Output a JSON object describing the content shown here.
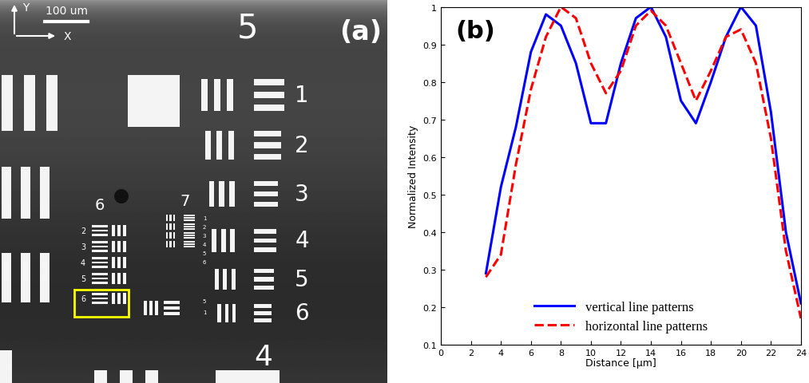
{
  "chart_data": {
    "type": "line",
    "label": "(b)",
    "x_label": "Distance [μm]",
    "y_label": "Normalized Intensity",
    "x": [
      3,
      4,
      5,
      6,
      7,
      8,
      9,
      10,
      11,
      12,
      13,
      14,
      15,
      16,
      17,
      18,
      19,
      20,
      21,
      22,
      23,
      24
    ],
    "series": [
      {
        "name": "vertical line patterns",
        "color": "#0000ff",
        "line_style": "solid",
        "values": [
          0.29,
          0.52,
          0.68,
          0.88,
          0.98,
          0.95,
          0.85,
          0.69,
          0.69,
          0.85,
          0.97,
          1.0,
          0.92,
          0.75,
          0.69,
          0.8,
          0.92,
          1.0,
          0.95,
          0.72,
          0.4,
          0.21
        ]
      },
      {
        "name": "horizontal line patterns",
        "color": "#ff0000",
        "line_style": "dashed",
        "values": [
          0.28,
          0.34,
          0.58,
          0.78,
          0.92,
          1.0,
          0.97,
          0.85,
          0.77,
          0.83,
          0.95,
          0.99,
          0.95,
          0.85,
          0.75,
          0.83,
          0.92,
          0.94,
          0.85,
          0.65,
          0.35,
          0.17
        ]
      }
    ],
    "xlim": [
      0,
      24
    ],
    "xticks": [
      0,
      2,
      4,
      6,
      8,
      10,
      12,
      14,
      16,
      18,
      20,
      22,
      24
    ],
    "ylim": [
      0.1,
      1
    ],
    "yticks": [
      0.1,
      0.2,
      0.3,
      0.4,
      0.5,
      0.6,
      0.7,
      0.8,
      0.9,
      1
    ],
    "grid": false,
    "legend": "lower center"
  },
  "image_panel": {
    "label": "(a)",
    "scale_bar": "100 um",
    "axis_y": "Y",
    "axis_x": "X",
    "group_labels": [
      "5",
      "4",
      "6",
      "7"
    ],
    "element_labels": [
      "1",
      "2",
      "3",
      "4",
      "5",
      "6"
    ],
    "group6_element_labels": [
      "2",
      "3",
      "4",
      "5",
      "6"
    ],
    "group7_element_labels": [
      "1",
      "2",
      "3",
      "4",
      "5",
      "6"
    ],
    "extra_labels": [
      "5",
      "1"
    ],
    "highlight_color": "#ffff00"
  }
}
